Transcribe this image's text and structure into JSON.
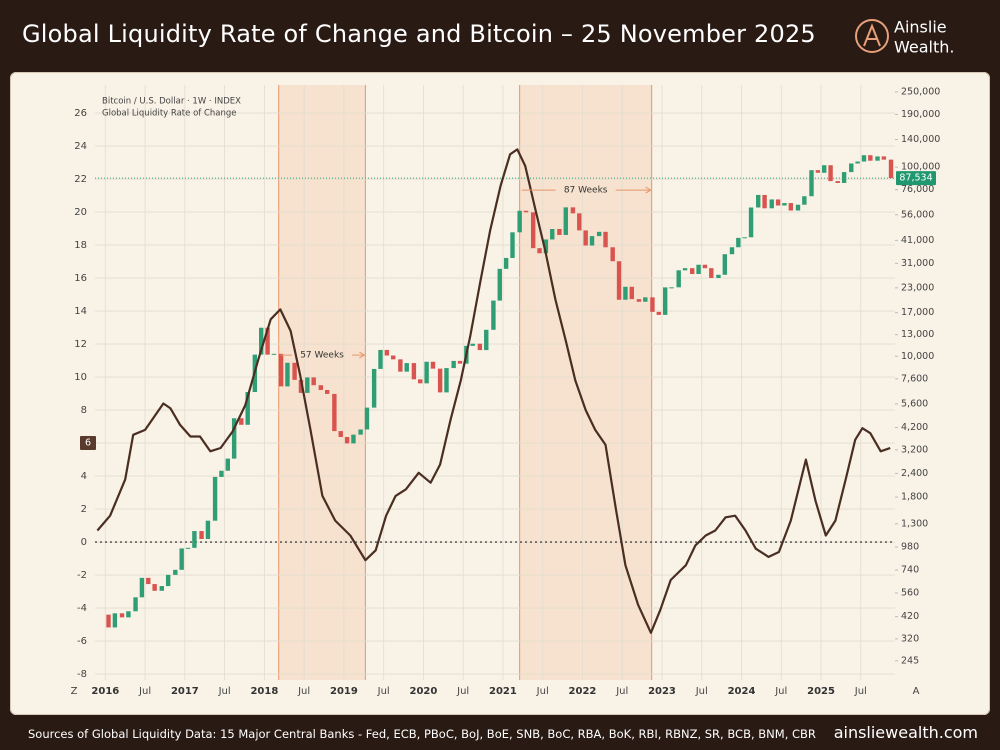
{
  "header": {
    "title": "Global Liquidity Rate of Change and Bitcoin – 25 November 2025",
    "logo": [
      "Ainslie",
      "Wealth."
    ]
  },
  "footer": {
    "sources": "Sources of Global Liquidity Data: 15 Major Central Banks - Fed, ECB, PBoC, BoJ, BoE, SNB, BoC, RBA, BoK, RBI, RBNZ, SR, BCB, BNM, CBR",
    "website": "ainsliewealth.com"
  },
  "chart_data": {
    "type": "combo",
    "grid": true,
    "y2_log": true,
    "xlim": [
      2015.87,
      2025.93
    ],
    "xticks": [
      2016,
      {
        "value": 2016.5,
        "label": "Jul"
      },
      2017,
      {
        "value": 2017.5,
        "label": "Jul"
      },
      2018,
      {
        "value": 2018.5,
        "label": "Jul"
      },
      2019,
      {
        "value": 2019.5,
        "label": "Jul"
      },
      2020,
      {
        "value": 2020.5,
        "label": "Jul"
      },
      2021,
      {
        "value": 2021.5,
        "label": "Jul"
      },
      2022,
      {
        "value": 2022.5,
        "label": "Jul"
      },
      2023,
      {
        "value": 2023.5,
        "label": "Jul"
      },
      2024,
      {
        "value": 2024.5,
        "label": "Jul"
      },
      2025,
      {
        "value": 2025.5,
        "label": "Jul"
      }
    ],
    "ylim": [
      -8.36,
      27.7
    ],
    "yticks": [
      -8,
      -6,
      -4,
      -2,
      0,
      2,
      4,
      6,
      8,
      10,
      12,
      14,
      16,
      18,
      20,
      22,
      24,
      26
    ],
    "y2lim": [
      194,
      272000
    ],
    "y2ticks": [
      245,
      320,
      420,
      560,
      740,
      980,
      {
        "value": 1300,
        "label": "1,300"
      },
      {
        "value": 1800,
        "label": "1,800"
      },
      {
        "value": 2400,
        "label": "2,400"
      },
      {
        "value": 3200,
        "label": "3,200"
      },
      {
        "value": 4200,
        "label": "4,200"
      },
      {
        "value": 5600,
        "label": "5,600"
      },
      {
        "value": 7600,
        "label": "7,600"
      },
      {
        "value": 10000,
        "label": "10,000"
      },
      {
        "value": 13000,
        "label": "13,000"
      },
      {
        "value": 17000,
        "label": "17,000"
      },
      {
        "value": 23000,
        "label": "23,000"
      },
      {
        "value": 31000,
        "label": "31,000"
      },
      {
        "value": 41000,
        "label": "41,000"
      },
      {
        "value": 56000,
        "label": "56,000"
      },
      {
        "value": 76000,
        "label": "76,000"
      },
      {
        "value": 100000,
        "label": "100,000"
      },
      {
        "value": 140000,
        "label": "140,000"
      },
      {
        "value": 190000,
        "label": "190,000"
      },
      {
        "value": 250000,
        "label": "250,000"
      }
    ],
    "corner_labels": [
      "Z",
      "A"
    ],
    "reference_line": 0,
    "highlight_spans": [
      {
        "start": 2018.18,
        "end": 2019.27,
        "label": "57 Weeks",
        "y": 11.33
      },
      {
        "start": 2021.21,
        "end": 2022.87,
        "label": "87 Weeks",
        "y": 21.33
      }
    ],
    "span_color": "#f6dcc6",
    "span_edge_color": "#e8956a",
    "series": [
      {
        "name": "Bitcoin / U.S. Dollar · 1W · INDEX",
        "type": "candlestick",
        "axis": "y2",
        "up_color": "#2f9e74",
        "down_color": "#d9534f",
        "last_price": {
          "value": 87534,
          "label": "87,534"
        },
        "x": [
          2016.04,
          2016.12,
          2016.21,
          2016.29,
          2016.38,
          2016.46,
          2016.54,
          2016.62,
          2016.71,
          2016.79,
          2016.88,
          2016.96,
          2017.04,
          2017.12,
          2017.21,
          2017.29,
          2017.38,
          2017.46,
          2017.54,
          2017.62,
          2017.71,
          2017.79,
          2017.88,
          2017.96,
          2018.04,
          2018.12,
          2018.21,
          2018.29,
          2018.38,
          2018.46,
          2018.54,
          2018.62,
          2018.71,
          2018.79,
          2018.88,
          2018.96,
          2019.04,
          2019.12,
          2019.21,
          2019.29,
          2019.38,
          2019.46,
          2019.54,
          2019.62,
          2019.71,
          2019.79,
          2019.88,
          2019.96,
          2020.04,
          2020.12,
          2020.21,
          2020.29,
          2020.38,
          2020.46,
          2020.54,
          2020.62,
          2020.71,
          2020.79,
          2020.88,
          2020.96,
          2021.04,
          2021.12,
          2021.21,
          2021.29,
          2021.38,
          2021.46,
          2021.54,
          2021.62,
          2021.71,
          2021.79,
          2021.88,
          2021.96,
          2022.04,
          2022.12,
          2022.21,
          2022.29,
          2022.38,
          2022.46,
          2022.54,
          2022.62,
          2022.71,
          2022.79,
          2022.88,
          2022.96,
          2023.04,
          2023.12,
          2023.21,
          2023.29,
          2023.38,
          2023.46,
          2023.54,
          2023.62,
          2023.71,
          2023.79,
          2023.88,
          2023.96,
          2024.04,
          2024.12,
          2024.21,
          2024.29,
          2024.38,
          2024.46,
          2024.54,
          2024.62,
          2024.71,
          2024.79,
          2024.88,
          2024.96,
          2025.04,
          2025.12,
          2025.21,
          2025.29,
          2025.38,
          2025.46,
          2025.54,
          2025.62,
          2025.71,
          2025.79,
          2025.88
        ],
        "open": [
          430,
          368,
          437,
          416,
          448,
          531,
          673,
          624,
          575,
          609,
          698,
          742,
          963,
          970,
          1190,
          1080,
          1350,
          2300,
          2480,
          2875,
          4700,
          4340,
          6470,
          10200,
          14150,
          10200,
          10300,
          6930,
          9240,
          7500,
          6400,
          7730,
          7030,
          6630,
          6320,
          4020,
          3740,
          3460,
          3850,
          4100,
          5350,
          8570,
          10800,
          10090,
          9630,
          8290,
          9200,
          7550,
          7190,
          9350,
          8600,
          6440,
          8660,
          9450,
          9140,
          11350,
          11650,
          10780,
          13800,
          19700,
          28990,
          33100,
          45240,
          58800,
          57700,
          37300,
          35040,
          41460,
          47100,
          43790,
          61300,
          57000,
          46300,
          38500,
          43200,
          45500,
          37700,
          31800,
          19900,
          23300,
          20050,
          19420,
          20490,
          17170,
          16550,
          23140,
          23150,
          28480,
          29230,
          27220,
          30480,
          29230,
          25940,
          26970,
          34650,
          37720,
          42270,
          42580,
          61200,
          71300,
          60600,
          67500,
          62700,
          64600,
          59000,
          63300,
          70200,
          96400,
          93400,
          102400,
          84400,
          82500,
          94200,
          104600,
          107100,
          115700,
          108200,
          114000,
          109600
        ],
        "close": [
          368,
          437,
          416,
          448,
          531,
          673,
          624,
          575,
          609,
          698,
          742,
          963,
          970,
          1190,
          1080,
          1350,
          2300,
          2480,
          2875,
          4700,
          4340,
          6470,
          10200,
          14150,
          10200,
          10300,
          6930,
          9240,
          7500,
          6400,
          7730,
          7030,
          6630,
          6320,
          4020,
          3740,
          3460,
          3850,
          4100,
          5350,
          8570,
          10800,
          10090,
          9630,
          8290,
          9200,
          7550,
          7190,
          9350,
          8600,
          6440,
          8660,
          9450,
          9140,
          11350,
          11650,
          10780,
          13800,
          19700,
          28990,
          33100,
          45240,
          58800,
          57700,
          37300,
          35040,
          41460,
          47100,
          43790,
          61300,
          57000,
          46300,
          38500,
          43200,
          45500,
          37700,
          31800,
          19900,
          23300,
          20050,
          19420,
          20490,
          17170,
          16550,
          23140,
          23150,
          28480,
          29230,
          27220,
          30480,
          29230,
          25940,
          26970,
          34650,
          37720,
          42270,
          42580,
          61200,
          71300,
          60600,
          67500,
          62700,
          64600,
          59000,
          63300,
          70200,
          96400,
          93400,
          102400,
          84400,
          82500,
          94200,
          104600,
          107100,
          115700,
          108200,
          114000,
          109600,
          87534
        ]
      },
      {
        "name": "Global Liquidity Rate of Change",
        "type": "line",
        "color": "#4a2e22",
        "marker_value": 6,
        "marker_color": "#5a3a2c",
        "x": [
          2015.9,
          2016.06,
          2016.25,
          2016.35,
          2016.5,
          2016.63,
          2016.73,
          2016.82,
          2016.94,
          2017.07,
          2017.19,
          2017.32,
          2017.45,
          2017.6,
          2017.76,
          2017.92,
          2018.08,
          2018.2,
          2018.33,
          2018.45,
          2018.58,
          2018.73,
          2018.89,
          2019.08,
          2019.27,
          2019.4,
          2019.53,
          2019.65,
          2019.78,
          2019.94,
          2020.09,
          2020.21,
          2020.34,
          2020.47,
          2020.59,
          2020.72,
          2020.84,
          2020.97,
          2021.09,
          2021.18,
          2021.28,
          2021.41,
          2021.53,
          2021.66,
          2021.79,
          2021.91,
          2022.04,
          2022.16,
          2022.29,
          2022.42,
          2022.54,
          2022.7,
          2022.86,
          2022.98,
          2023.11,
          2023.3,
          2023.42,
          2023.55,
          2023.67,
          2023.8,
          2023.92,
          2024.05,
          2024.18,
          2024.34,
          2024.47,
          2024.62,
          2024.81,
          2024.93,
          2025.06,
          2025.18,
          2025.31,
          2025.43,
          2025.52,
          2025.62,
          2025.75,
          2025.87
        ],
        "values": [
          0.7,
          1.6,
          3.8,
          6.5,
          6.8,
          7.7,
          8.4,
          8.1,
          7.1,
          6.4,
          6.4,
          5.5,
          5.7,
          6.7,
          8.3,
          11.0,
          13.5,
          14.1,
          12.8,
          10.1,
          6.8,
          2.8,
          1.3,
          0.4,
          -1.1,
          -0.5,
          1.6,
          2.8,
          3.2,
          4.2,
          3.6,
          4.7,
          7.4,
          9.8,
          12.5,
          15.9,
          18.9,
          21.6,
          23.5,
          23.8,
          22.8,
          20.1,
          17.7,
          14.7,
          12.2,
          9.8,
          8.0,
          6.8,
          5.9,
          2.0,
          -1.4,
          -3.8,
          -5.5,
          -4.1,
          -2.3,
          -1.4,
          -0.2,
          0.4,
          0.7,
          1.5,
          1.6,
          0.7,
          -0.4,
          -0.9,
          -0.6,
          1.3,
          5.0,
          2.5,
          0.4,
          1.3,
          3.8,
          6.2,
          6.9,
          6.6,
          5.5,
          5.7
        ]
      }
    ]
  }
}
